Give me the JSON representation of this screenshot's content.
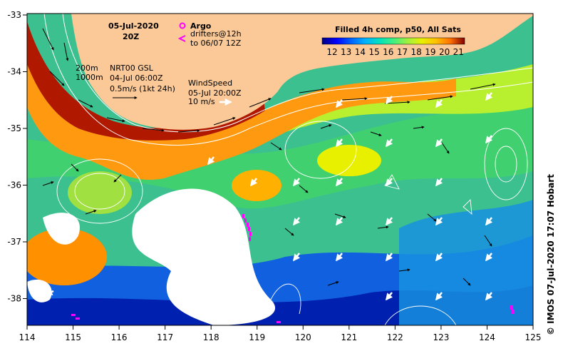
{
  "title": {
    "date": "05-Jul-2020",
    "time": "20Z"
  },
  "argo": {
    "label": "Argo",
    "drifters_line1": "drifters@12h",
    "drifters_line2": "to 06/07 12Z",
    "argo_color": "#ff00ff"
  },
  "isobaths": {
    "shallow": "200m",
    "deep": "1000m"
  },
  "currents": {
    "source": "NRT00 GSL",
    "time": "04-Jul 06:00Z",
    "scale": "0.5m/s (1kt 24h)"
  },
  "wind": {
    "label": "WindSpeed",
    "time": "05-Jul 20:00Z",
    "scale": "10 m/s"
  },
  "colorbar": {
    "title": "Filled 4h comp, p50, All Sats",
    "ticks": [
      "12",
      "13",
      "14",
      "15",
      "16",
      "17",
      "18",
      "19",
      "20",
      "21"
    ],
    "colors": [
      "#00007f",
      "#0000ff",
      "#0060ff",
      "#00b0ff",
      "#00e0c0",
      "#40f080",
      "#a0f040",
      "#e8f000",
      "#ffc000",
      "#ff7000",
      "#e02000",
      "#800000"
    ]
  },
  "axes": {
    "lon_ticks": [
      "114",
      "115",
      "116",
      "117",
      "118",
      "119",
      "120",
      "121",
      "122",
      "123",
      "124",
      "125"
    ],
    "lat_ticks": [
      "-33",
      "-34",
      "-35",
      "-36",
      "-37",
      "-38"
    ]
  },
  "credit": "© IMOS 07-Jul-2020 17:07 Hobart",
  "colors": {
    "land": "#fbc998",
    "missing": "#ffffff"
  }
}
